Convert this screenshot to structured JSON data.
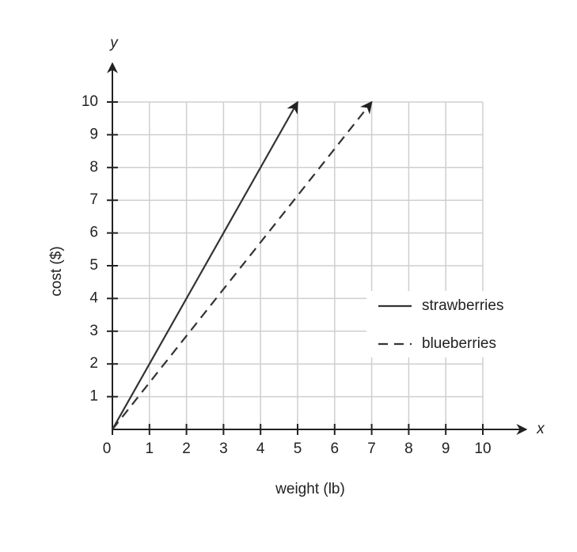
{
  "chart_data": {
    "type": "line",
    "x_axis_label": "x",
    "y_axis_label": "y",
    "x_title": "weight (lb)",
    "y_title": "cost ($)",
    "xlim": [
      0,
      10
    ],
    "ylim": [
      0,
      10
    ],
    "xticks": [
      0,
      1,
      2,
      3,
      4,
      5,
      6,
      7,
      8,
      9,
      10
    ],
    "yticks": [
      1,
      2,
      3,
      4,
      5,
      6,
      7,
      8,
      9,
      10
    ],
    "grid": true,
    "series": [
      {
        "name": "strawberries",
        "color": "#333333",
        "dash": "solid",
        "x": [
          0,
          5
        ],
        "values": [
          0,
          10
        ]
      },
      {
        "name": "blueberries",
        "color": "#333333",
        "dash": "dashed",
        "x": [
          0,
          7
        ],
        "values": [
          0,
          10
        ]
      }
    ]
  }
}
